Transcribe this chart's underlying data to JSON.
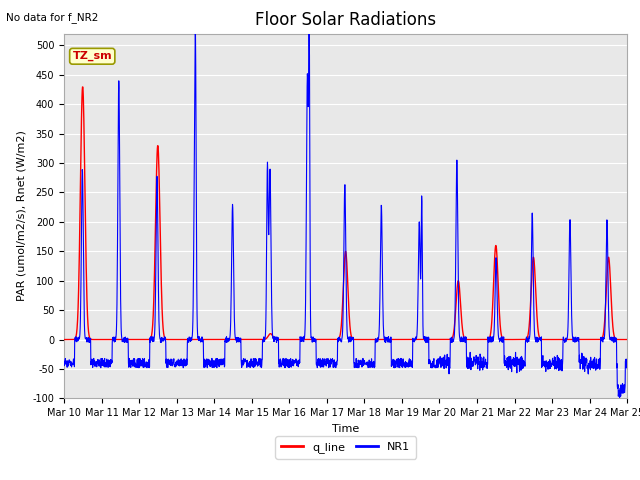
{
  "title": "Floor Solar Radiations",
  "xlabel": "Time",
  "ylabel": "PAR (umol/m2/s), Rnet (W/m2)",
  "top_left_text": "No data for f_NR2",
  "legend_label_red": "q_line",
  "legend_label_blue": "NR1",
  "box_label": "TZ_sm",
  "ylim": [
    -100,
    520
  ],
  "yticks": [
    -100,
    -50,
    0,
    50,
    100,
    150,
    200,
    250,
    300,
    350,
    400,
    450,
    500
  ],
  "x_tick_labels": [
    "Mar 10",
    "Mar 11",
    "Mar 12",
    "Mar 13",
    "Mar 14",
    "Mar 15",
    "Mar 16",
    "Mar 17",
    "Mar 18",
    "Mar 19",
    "Mar 20",
    "Mar 21",
    "Mar 22",
    "Mar 23",
    "Mar 24",
    "Mar 25"
  ],
  "bg_color": "#e8e8e8",
  "red_color": "#ff0000",
  "blue_color": "#0000ff",
  "title_fontsize": 12,
  "axis_label_fontsize": 8,
  "tick_fontsize": 7,
  "n_days": 15,
  "n_pts_per_day": 144,
  "q_peaks": [
    430,
    0,
    330,
    0,
    5,
    10,
    0,
    150,
    0,
    0,
    100,
    160,
    140,
    0,
    140
  ],
  "nr1_peaks": [
    290,
    440,
    280,
    415,
    230,
    290,
    450,
    265,
    230,
    200,
    305,
    140,
    215,
    205,
    205
  ],
  "nr1_peak2": [
    0,
    0,
    0,
    165,
    0,
    0,
    480,
    0,
    0,
    240,
    0,
    0,
    0,
    0,
    0
  ],
  "nr1_peak3": [
    0,
    0,
    0,
    0,
    0,
    295,
    0,
    0,
    0,
    0,
    0,
    0,
    0,
    0,
    0
  ],
  "night_neg": -40,
  "deep_neg_day": 14,
  "deep_neg_val": -85
}
